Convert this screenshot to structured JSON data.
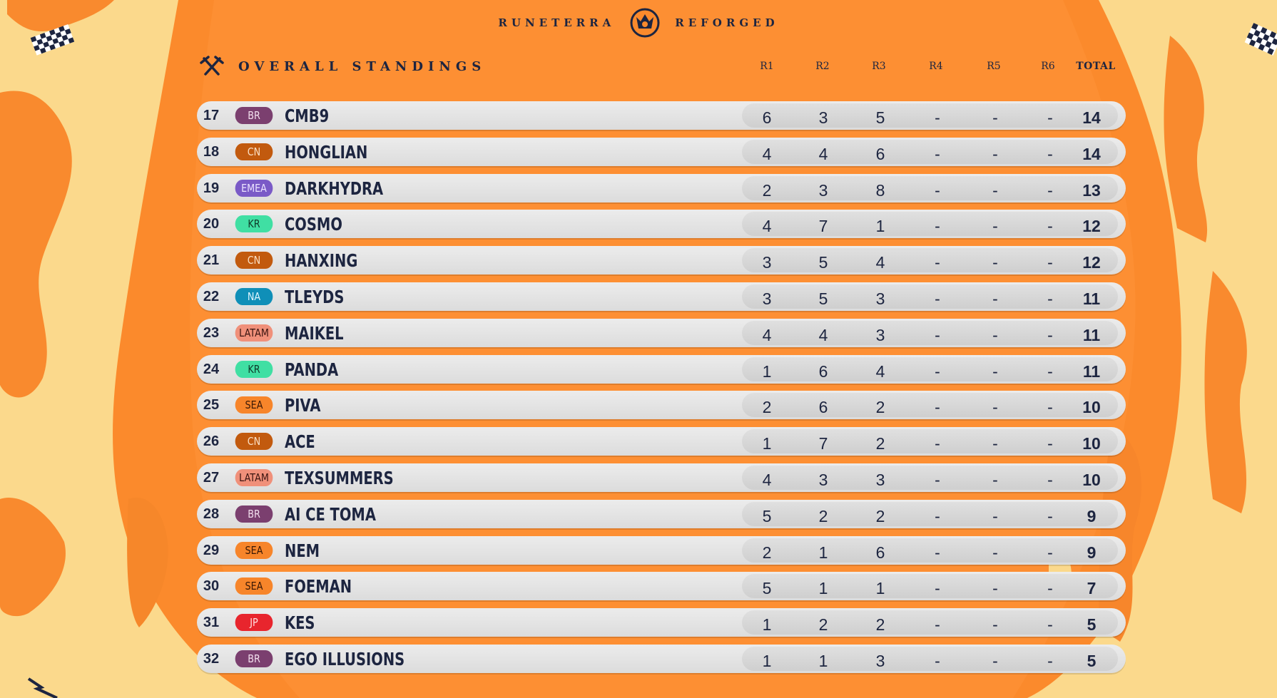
{
  "header": {
    "brand_left": "RUNETERRA",
    "brand_right": "REFORGED",
    "brand_logo_icon": "runeterra-crest-icon",
    "title": "OVERALL STANDINGS",
    "title_icon": "crossed-swords-icon"
  },
  "columns": [
    "R1",
    "R2",
    "R3",
    "R4",
    "R5",
    "R6",
    "TOTAL"
  ],
  "region_colors": {
    "BR": {
      "bg": "#7b3f6f",
      "fg": "#f3dfee"
    },
    "CN": {
      "bg": "#c25a0e",
      "fg": "#fbe1c6"
    },
    "EMEA": {
      "bg": "#7a5ac7",
      "fg": "#ece4ff"
    },
    "KR": {
      "bg": "#40dfa3",
      "fg": "#0f3a2a"
    },
    "NA": {
      "bg": "#0f8fb8",
      "fg": "#e0f6ff"
    },
    "LATAM": {
      "bg": "#f0907a",
      "fg": "#3a1410"
    },
    "SEA": {
      "bg": "#f7852a",
      "fg": "#3a1806"
    },
    "JP": {
      "bg": "#e8252d",
      "fg": "#ffe2e2"
    }
  },
  "rows": [
    {
      "rank": "17",
      "region": "BR",
      "name": "CMB9",
      "r1": "6",
      "r2": "3",
      "r3": "5",
      "r4": "-",
      "r5": "-",
      "r6": "-",
      "total": "14"
    },
    {
      "rank": "18",
      "region": "CN",
      "name": "HONGLIAN",
      "r1": "4",
      "r2": "4",
      "r3": "6",
      "r4": "-",
      "r5": "-",
      "r6": "-",
      "total": "14"
    },
    {
      "rank": "19",
      "region": "EMEA",
      "name": "DARKHYDRA",
      "r1": "2",
      "r2": "3",
      "r3": "8",
      "r4": "-",
      "r5": "-",
      "r6": "-",
      "total": "13"
    },
    {
      "rank": "20",
      "region": "KR",
      "name": "COSMO",
      "r1": "4",
      "r2": "7",
      "r3": "1",
      "r4": "-",
      "r5": "-",
      "r6": "-",
      "total": "12"
    },
    {
      "rank": "21",
      "region": "CN",
      "name": "HANXING",
      "r1": "3",
      "r2": "5",
      "r3": "4",
      "r4": "-",
      "r5": "-",
      "r6": "-",
      "total": "12"
    },
    {
      "rank": "22",
      "region": "NA",
      "name": "TLEYDS",
      "r1": "3",
      "r2": "5",
      "r3": "3",
      "r4": "-",
      "r5": "-",
      "r6": "-",
      "total": "11"
    },
    {
      "rank": "23",
      "region": "LATAM",
      "name": "MAIKEL",
      "r1": "4",
      "r2": "4",
      "r3": "3",
      "r4": "-",
      "r5": "-",
      "r6": "-",
      "total": "11"
    },
    {
      "rank": "24",
      "region": "KR",
      "name": "PANDA",
      "r1": "1",
      "r2": "6",
      "r3": "4",
      "r4": "-",
      "r5": "-",
      "r6": "-",
      "total": "11"
    },
    {
      "rank": "25",
      "region": "SEA",
      "name": "PIVA",
      "r1": "2",
      "r2": "6",
      "r3": "2",
      "r4": "-",
      "r5": "-",
      "r6": "-",
      "total": "10"
    },
    {
      "rank": "26",
      "region": "CN",
      "name": "ACE",
      "r1": "1",
      "r2": "7",
      "r3": "2",
      "r4": "-",
      "r5": "-",
      "r6": "-",
      "total": "10"
    },
    {
      "rank": "27",
      "region": "LATAM",
      "name": "TEXSUMMERS",
      "r1": "4",
      "r2": "3",
      "r3": "3",
      "r4": "-",
      "r5": "-",
      "r6": "-",
      "total": "10"
    },
    {
      "rank": "28",
      "region": "BR",
      "name": "AI CE TOMA",
      "r1": "5",
      "r2": "2",
      "r3": "2",
      "r4": "-",
      "r5": "-",
      "r6": "-",
      "total": "9"
    },
    {
      "rank": "29",
      "region": "SEA",
      "name": "NEM",
      "r1": "2",
      "r2": "1",
      "r3": "6",
      "r4": "-",
      "r5": "-",
      "r6": "-",
      "total": "9"
    },
    {
      "rank": "30",
      "region": "SEA",
      "name": "FOEMAN",
      "r1": "5",
      "r2": "1",
      "r3": "1",
      "r4": "-",
      "r5": "-",
      "r6": "-",
      "total": "7"
    },
    {
      "rank": "31",
      "region": "JP",
      "name": "KES",
      "r1": "1",
      "r2": "2",
      "r3": "2",
      "r4": "-",
      "r5": "-",
      "r6": "-",
      "total": "5"
    },
    {
      "rank": "32",
      "region": "BR",
      "name": "EGO ILLUSIONS",
      "r1": "1",
      "r2": "1",
      "r3": "3",
      "r4": "-",
      "r5": "-",
      "r6": "-",
      "total": "5"
    }
  ],
  "decor": {
    "checkered_flag_icon": "checkered-flag-icon"
  }
}
